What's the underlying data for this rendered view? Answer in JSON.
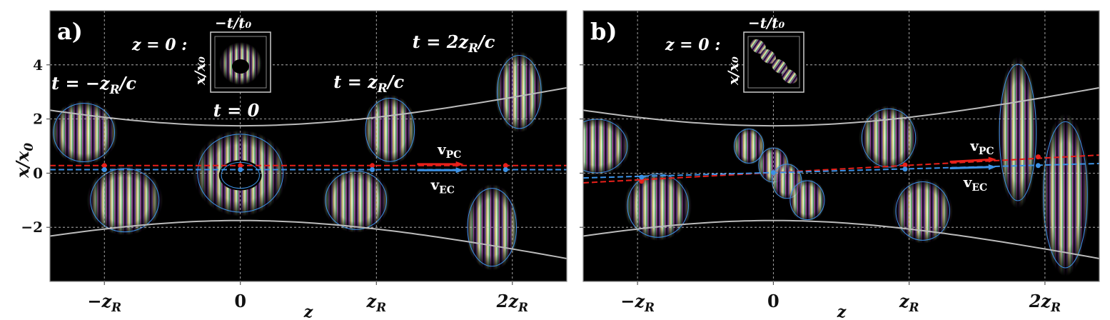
{
  "chart_data": [
    {
      "type": "heatmap",
      "panel_label": "a)",
      "xlabel": "z",
      "ylabel": "x/x₀",
      "xticks": [
        {
          "value": -1,
          "label": "−z",
          "sub": "R"
        },
        {
          "value": 0,
          "label": "0",
          "sub": ""
        },
        {
          "value": 1,
          "label": "z",
          "sub": "R"
        },
        {
          "value": 2,
          "label": "2z",
          "sub": "R"
        }
      ],
      "yticks": [
        -2,
        0,
        2,
        4
      ],
      "xlim": [
        -1.4,
        2.4
      ],
      "ylim": [
        -4,
        6
      ],
      "grid": true,
      "annotations": {
        "inset_title": "z = 0 :",
        "inset_xlabel": "−t/t₀",
        "inset_ylabel": "x/x₀",
        "time_labels": [
          "t = −z_R/c",
          "t = 0",
          "t = z_R/c",
          "t = 2z_R/c"
        ],
        "v_pc": "v",
        "v_pc_sub": "PC",
        "v_ec": "v",
        "v_ec_sub": "EC"
      },
      "pulses": [
        {
          "z": -1,
          "lobes": [
            {
              "dz": -0.15,
              "x": 1.5,
              "w": 0.25,
              "h": 1.2,
              "rot": 0
            },
            {
              "dz": 0.15,
              "x": -1.0,
              "w": 0.28,
              "h": 1.3,
              "rot": 0
            }
          ]
        },
        {
          "z": 0,
          "lobes": [
            {
              "dz": 0,
              "x": 0,
              "w": 0.35,
              "h": 1.6,
              "ring": true
            }
          ]
        },
        {
          "z": 1,
          "lobes": [
            {
              "dz": 0.1,
              "x": 1.6,
              "w": 0.2,
              "h": 1.3,
              "rot": 0
            },
            {
              "dz": -0.15,
              "x": -1.0,
              "w": 0.25,
              "h": 1.2,
              "rot": 0
            }
          ]
        },
        {
          "z": 2,
          "lobes": [
            {
              "dz": 0.05,
              "x": 3.0,
              "w": 0.18,
              "h": 1.5,
              "rot": 0
            },
            {
              "dz": -0.15,
              "x": -2.0,
              "w": 0.2,
              "h": 1.6,
              "rot": 0
            }
          ]
        }
      ],
      "pc_line": {
        "slope": 0,
        "intercept": 0.28,
        "color": "#e8201a"
      },
      "ec_line": {
        "slope": 0,
        "intercept": 0.13,
        "color": "#3c92e6"
      },
      "pc_points": [
        {
          "z": -1,
          "x": 0.28
        },
        {
          "z": 0,
          "x": 0.28
        },
        {
          "z": 0.97,
          "x": 0.28
        },
        {
          "z": 1.95,
          "x": 0.28
        }
      ],
      "ec_points": [
        {
          "z": -1,
          "x": 0.13
        },
        {
          "z": 0,
          "x": 0.13
        },
        {
          "z": 0.97,
          "x": 0.13
        },
        {
          "z": 1.95,
          "x": 0.13
        }
      ],
      "beam_envelope": {
        "w0": 1.75,
        "zr": 1.0
      },
      "colors": {
        "background": "#000000",
        "envelope": "#bbbbbb",
        "contour": "#3c92e6",
        "grid": "#cccccc"
      }
    },
    {
      "type": "heatmap",
      "panel_label": "b)",
      "xlabel": "z",
      "ylabel": "x/x₀",
      "xticks": [
        {
          "value": -1,
          "label": "−z",
          "sub": "R"
        },
        {
          "value": 0,
          "label": "0",
          "sub": ""
        },
        {
          "value": 1,
          "label": "z",
          "sub": "R"
        },
        {
          "value": 2,
          "label": "2z",
          "sub": "R"
        }
      ],
      "yticks": [
        -2,
        0,
        2,
        4
      ],
      "xlim": [
        -1.4,
        2.4
      ],
      "ylim": [
        -4,
        6
      ],
      "grid": true,
      "annotations": {
        "inset_title": "z = 0 :",
        "inset_xlabel": "−t/t₀",
        "inset_ylabel": "x/x₀",
        "v_pc": "v",
        "v_pc_sub": "PC",
        "v_ec": "v",
        "v_ec_sub": "EC"
      },
      "pulses": [
        {
          "z": -1,
          "lobes": [
            {
              "dz": -0.3,
              "x": 1.0,
              "w": 0.25,
              "h": 1.1,
              "rot": 0
            },
            {
              "dz": 0.15,
              "x": -1.2,
              "w": 0.25,
              "h": 1.3,
              "rot": 0
            }
          ]
        },
        {
          "z": 0,
          "lobes": [
            {
              "dz": -0.18,
              "x": 1.0,
              "w": 0.12,
              "h": 0.7,
              "rot": 0
            },
            {
              "dz": 0,
              "x": 0.3,
              "w": 0.12,
              "h": 0.7,
              "rot": 0
            },
            {
              "dz": 0.1,
              "x": -0.3,
              "w": 0.12,
              "h": 0.7,
              "rot": 0
            },
            {
              "dz": 0.25,
              "x": -1.0,
              "w": 0.14,
              "h": 0.8,
              "rot": 0
            }
          ]
        },
        {
          "z": 1,
          "lobes": [
            {
              "dz": -0.15,
              "x": 1.3,
              "w": 0.22,
              "h": 1.2,
              "rot": 0
            },
            {
              "dz": 0.1,
              "x": -1.4,
              "w": 0.22,
              "h": 1.2,
              "rot": 0
            }
          ]
        },
        {
          "z": 2,
          "lobes": [
            {
              "dz": -0.2,
              "x": 1.5,
              "w": 0.15,
              "h": 2.8,
              "rot": 0
            },
            {
              "dz": 0.15,
              "x": -0.8,
              "w": 0.18,
              "h": 3.0,
              "rot": 0
            }
          ]
        }
      ],
      "pc_line": {
        "slope": 0.27,
        "intercept": 0.02,
        "color": "#e8201a"
      },
      "ec_line": {
        "slope": 0.14,
        "intercept": 0.02,
        "color": "#3c92e6"
      },
      "pc_points": [
        {
          "z": -0.97,
          "x": -0.3
        },
        {
          "z": 0,
          "x": 0.02
        },
        {
          "z": 0.97,
          "x": 0.3
        },
        {
          "z": 1.95,
          "x": 0.6
        }
      ],
      "ec_points": [
        {
          "z": -0.97,
          "x": -0.15
        },
        {
          "z": 0,
          "x": 0.02
        },
        {
          "z": 0.97,
          "x": 0.15
        },
        {
          "z": 1.95,
          "x": 0.28
        }
      ],
      "beam_envelope": {
        "w0": 1.75,
        "zr": 1.0
      },
      "colors": {
        "background": "#000000",
        "envelope": "#bbbbbb",
        "contour": "#3c92e6",
        "grid": "#cccccc"
      }
    }
  ]
}
